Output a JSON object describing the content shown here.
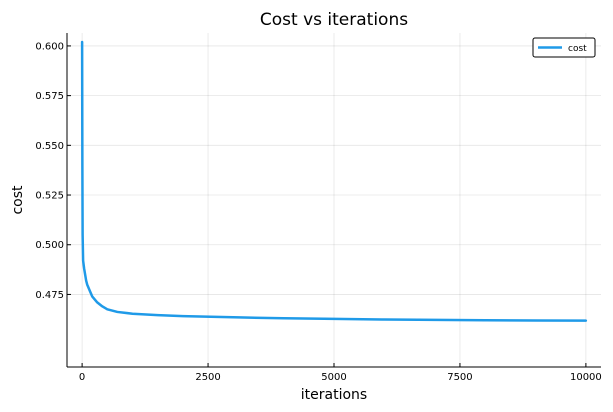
{
  "chart_data": {
    "type": "line",
    "title": "Cost vs iterations",
    "xlabel": "iterations",
    "ylabel": "cost",
    "xlim": [
      -300,
      10300
    ],
    "ylim": [
      0.4385,
      0.6065
    ],
    "xticks": [
      0,
      2500,
      5000,
      7500,
      10000
    ],
    "xtick_labels": [
      "0",
      "2500",
      "5000",
      "7500",
      "10000"
    ],
    "yticks": [
      0.475,
      0.5,
      0.525,
      0.55,
      0.575,
      0.6
    ],
    "ytick_labels": [
      "0.475",
      "0.500",
      "0.525",
      "0.550",
      "0.575",
      "0.600"
    ],
    "grid": true,
    "legend_position": "top-right",
    "series": [
      {
        "name": "cost",
        "color": "#1f9ae8",
        "x": [
          0,
          5,
          10,
          20,
          40,
          60,
          80,
          100,
          150,
          200,
          300,
          400,
          500,
          700,
          1000,
          1500,
          2000,
          3000,
          4000,
          5000,
          6000,
          7000,
          8000,
          9000,
          10000
        ],
        "y": [
          0.602,
          0.54,
          0.505,
          0.492,
          0.488,
          0.485,
          0.482,
          0.48,
          0.477,
          0.474,
          0.471,
          0.469,
          0.4675,
          0.4662,
          0.4653,
          0.4646,
          0.4641,
          0.4635,
          0.463,
          0.4627,
          0.4624,
          0.4622,
          0.462,
          0.4619,
          0.4618
        ]
      }
    ]
  }
}
